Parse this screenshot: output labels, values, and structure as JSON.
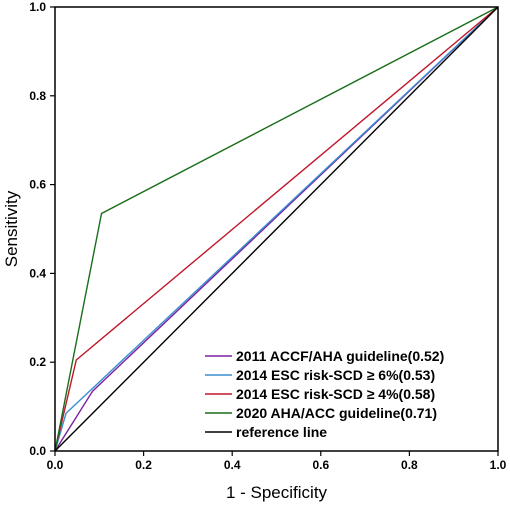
{
  "chart_data": {
    "type": "line",
    "xlabel": "1 - Specificity",
    "ylabel": "Sensitivity",
    "xlim": [
      0,
      1
    ],
    "ylim": [
      0,
      1
    ],
    "x_ticks": [
      "0.0",
      "0.2",
      "0.4",
      "0.6",
      "0.8",
      "1.0"
    ],
    "y_ticks": [
      "0.0",
      "0.2",
      "0.4",
      "0.6",
      "0.8",
      "1.0"
    ],
    "grid": false,
    "legend_position": "bottom-right",
    "series": [
      {
        "name": "2011 ACCF/AHA guideline(0.52)",
        "color": "#7b1fa2",
        "x": [
          0,
          0.085,
          1
        ],
        "y": [
          0,
          0.135,
          1
        ]
      },
      {
        "name": "2014 ESC risk-SCD ≥ 6%(0.53)",
        "color": "#3a8fd0",
        "x": [
          0,
          0.025,
          1
        ],
        "y": [
          0,
          0.085,
          1
        ]
      },
      {
        "name": "2014 ESC risk-SCD ≥ 4%(0.58)",
        "color": "#c0172a",
        "x": [
          0,
          0.048,
          1
        ],
        "y": [
          0,
          0.205,
          1
        ]
      },
      {
        "name": "2020 AHA/ACC guideline(0.71)",
        "color": "#1a6e1a",
        "x": [
          0,
          0.105,
          1
        ],
        "y": [
          0,
          0.535,
          1
        ]
      },
      {
        "name": "reference line",
        "color": "#000000",
        "x": [
          0,
          1
        ],
        "y": [
          0,
          1
        ]
      }
    ]
  }
}
